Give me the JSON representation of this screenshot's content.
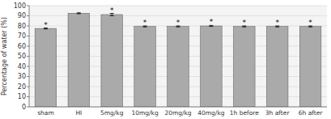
{
  "chart_data": {
    "type": "bar",
    "categories": [
      "sham",
      "HI",
      "5mg/kg",
      "10mg/kg",
      "20mg/kg",
      "40mg/kg",
      "1h before",
      "3h after",
      "6h after"
    ],
    "values": [
      77.5,
      92.5,
      91.2,
      79.5,
      79.5,
      80.0,
      79.5,
      79.5,
      79.5
    ],
    "errors": [
      0.5,
      0.5,
      1.2,
      0.5,
      0.5,
      0.5,
      0.5,
      0.5,
      0.5
    ],
    "color": "#aaaaaa",
    "ylabel": "Percentage of water (%)",
    "ylim": [
      0,
      100
    ],
    "yticks": [
      0,
      10,
      20,
      30,
      40,
      50,
      60,
      70,
      80,
      90,
      100
    ],
    "grid": true,
    "annotations": [
      {
        "text": "*",
        "category": "sham"
      },
      {
        "text": "*",
        "category": "5mg/kg"
      },
      {
        "text": "*",
        "category": "10mg/kg"
      },
      {
        "text": "*",
        "category": "20mg/kg"
      },
      {
        "text": "*",
        "category": "40mg/kg"
      },
      {
        "text": "*",
        "category": "1h before"
      },
      {
        "text": "*",
        "category": "3h after"
      },
      {
        "text": "*",
        "category": "6h after"
      }
    ]
  }
}
